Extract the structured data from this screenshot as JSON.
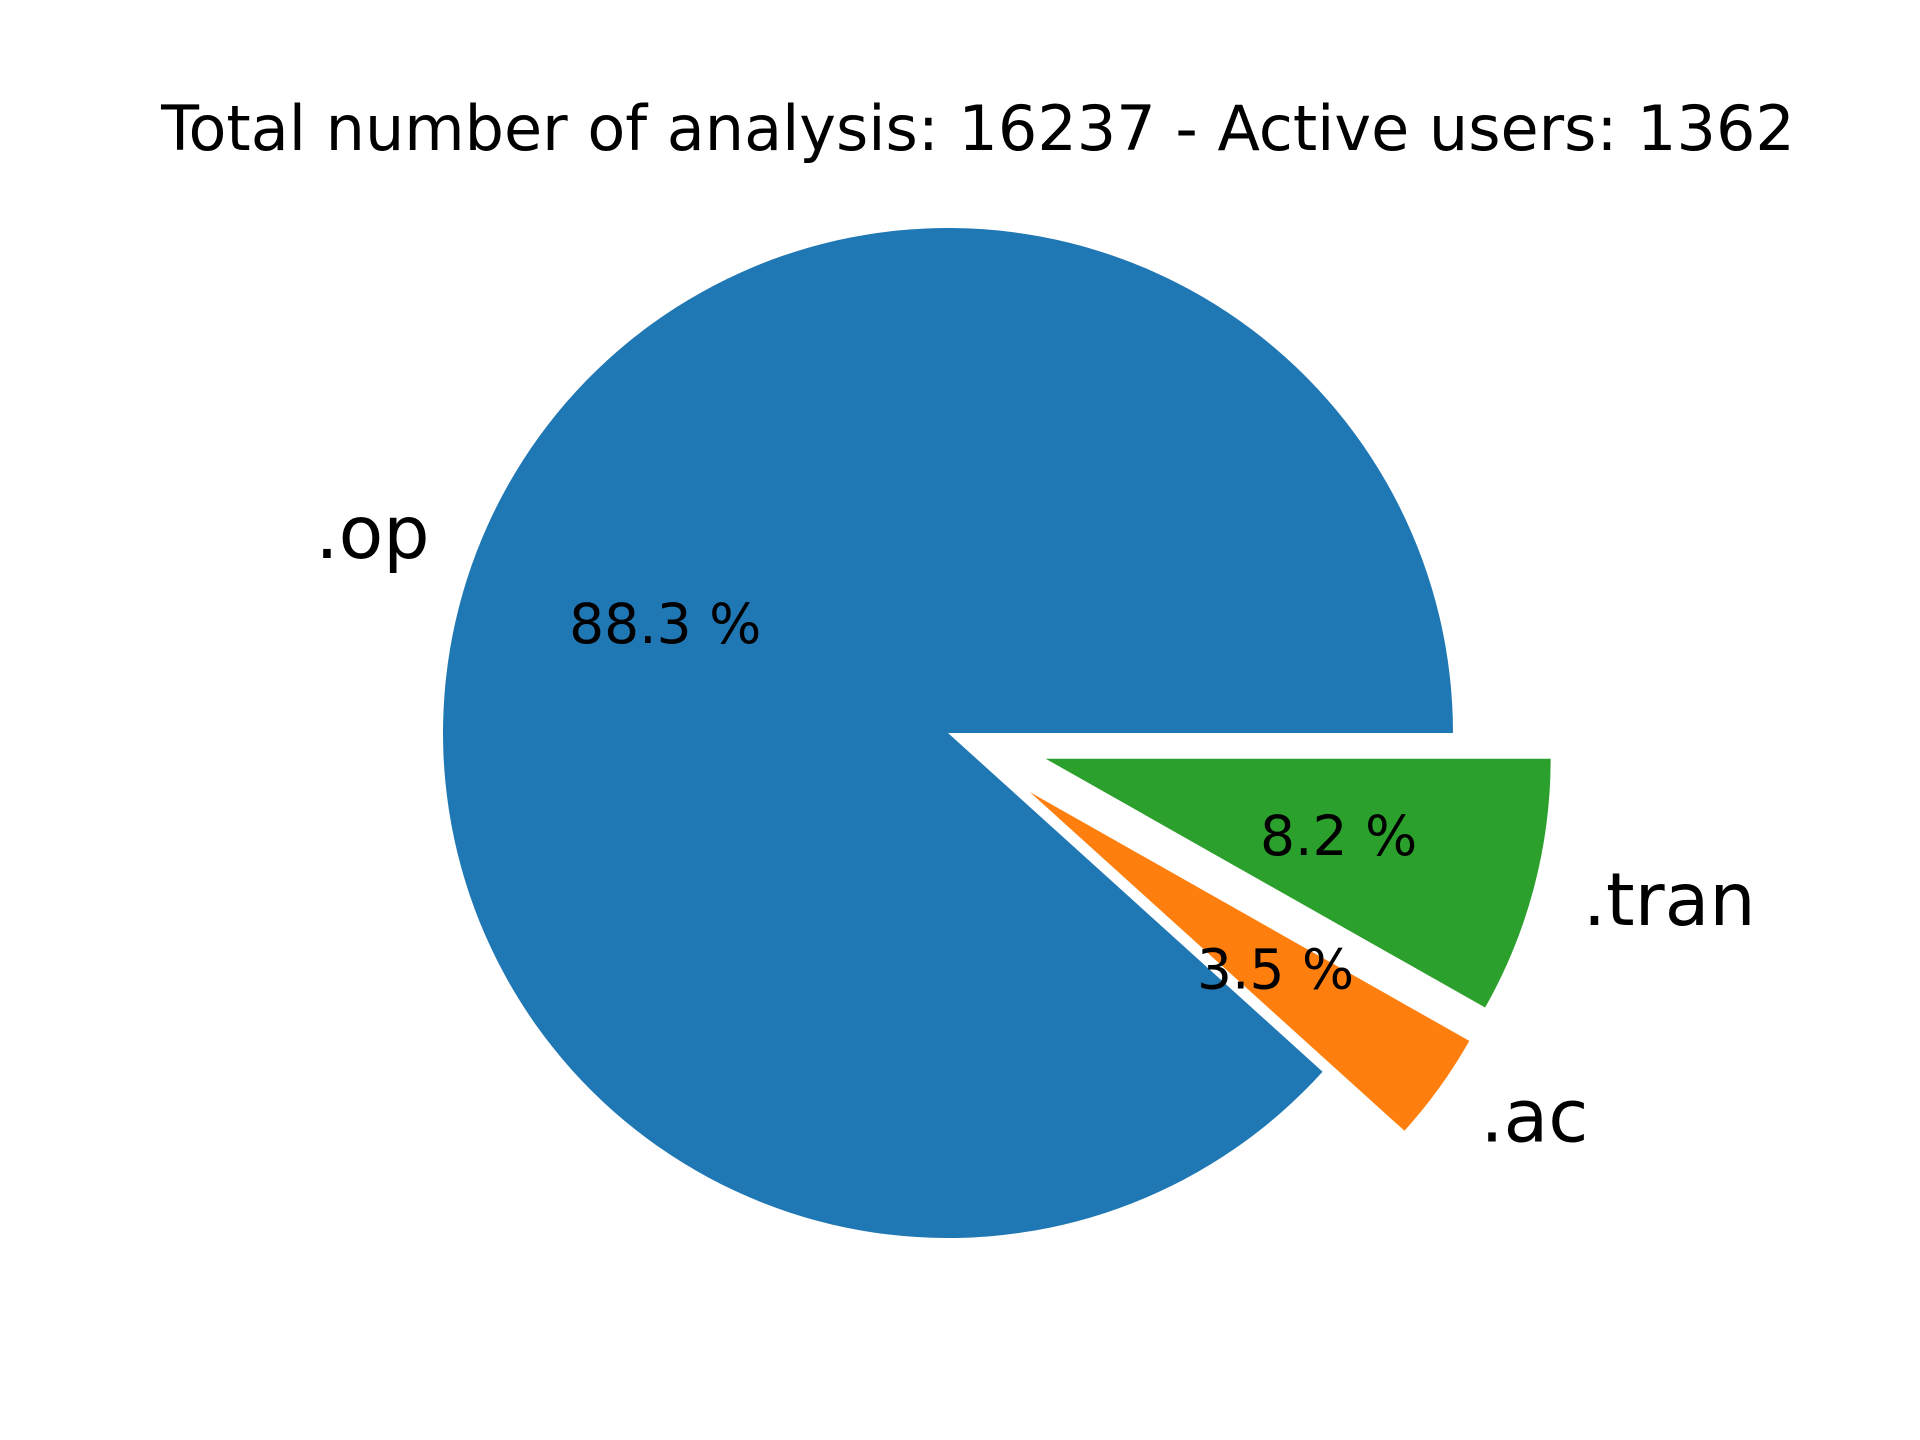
{
  "chart_data": {
    "type": "pie",
    "title": "Total number of analysis: 16237 - Active users: 1362",
    "slices": [
      {
        "label": ".op",
        "value": 88.3,
        "pct_label": "88.3 %",
        "color": "#1f77b4",
        "exploded": false
      },
      {
        "label": ".ac",
        "value": 3.5,
        "pct_label": "3.5 %",
        "color": "#ff7f0e",
        "exploded": true
      },
      {
        "label": ".tran",
        "value": 8.2,
        "pct_label": "8.2 %",
        "color": "#2ca02c",
        "exploded": true
      }
    ],
    "direction": "counterclockwise",
    "legend": "none"
  }
}
